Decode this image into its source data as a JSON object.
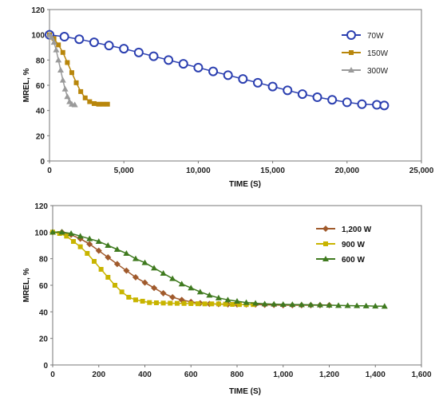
{
  "chart_data": [
    {
      "type": "line",
      "xlabel": "TIME (S)",
      "ylabel": "MREL, %",
      "xlim": [
        0,
        25000
      ],
      "ylim": [
        0,
        120
      ],
      "xticks": [
        "0",
        "5,000",
        "10,000",
        "15,000",
        "20,000",
        "25,000"
      ],
      "yticks": [
        "0",
        "20",
        "40",
        "60",
        "80",
        "100",
        "120"
      ],
      "legend_position": "top-right",
      "series": [
        {
          "name": "70W",
          "color": "#2b3fb0",
          "marker": "open-circle",
          "points": [
            [
              0,
              100
            ],
            [
              1000,
              98.5
            ],
            [
              2000,
              96.5
            ],
            [
              3000,
              94
            ],
            [
              4000,
              91.5
            ],
            [
              5000,
              89
            ],
            [
              6000,
              86
            ],
            [
              7000,
              83
            ],
            [
              8000,
              80
            ],
            [
              9000,
              77
            ],
            [
              10000,
              74
            ],
            [
              11000,
              71
            ],
            [
              12000,
              68
            ],
            [
              13000,
              65
            ],
            [
              14000,
              62
            ],
            [
              15000,
              59
            ],
            [
              16000,
              56
            ],
            [
              17000,
              53
            ],
            [
              18000,
              50.5
            ],
            [
              19000,
              48.5
            ],
            [
              20000,
              46.5
            ],
            [
              21000,
              45
            ],
            [
              22000,
              44.5
            ],
            [
              22500,
              44
            ]
          ]
        },
        {
          "name": "150W",
          "color": "#b8860b",
          "marker": "square",
          "points": [
            [
              0,
              100
            ],
            [
              300,
              97
            ],
            [
              600,
              92
            ],
            [
              900,
              86
            ],
            [
              1200,
              78
            ],
            [
              1500,
              70
            ],
            [
              1800,
              62
            ],
            [
              2100,
              55
            ],
            [
              2400,
              50
            ],
            [
              2700,
              47
            ],
            [
              3000,
              45.5
            ],
            [
              3300,
              45
            ],
            [
              3600,
              45
            ],
            [
              3900,
              45
            ]
          ]
        },
        {
          "name": "300W",
          "color": "#9a9a9a",
          "marker": "triangle",
          "points": [
            [
              0,
              100
            ],
            [
              150,
              98
            ],
            [
              300,
              94
            ],
            [
              450,
              88
            ],
            [
              600,
              80
            ],
            [
              750,
              72
            ],
            [
              900,
              64
            ],
            [
              1050,
              57
            ],
            [
              1200,
              51
            ],
            [
              1350,
              47
            ],
            [
              1500,
              45
            ],
            [
              1700,
              44.5
            ]
          ]
        }
      ]
    },
    {
      "type": "line",
      "xlabel": "TIME (S)",
      "ylabel": "MREL, %",
      "xlim": [
        0,
        1600
      ],
      "ylim": [
        0,
        120
      ],
      "xticks": [
        "0",
        "200",
        "400",
        "600",
        "800",
        "1,000",
        "1,200",
        "1,400",
        "1,600"
      ],
      "yticks": [
        "0",
        "20",
        "40",
        "60",
        "80",
        "100",
        "120"
      ],
      "legend_position": "top-right",
      "series": [
        {
          "name": "1,200 W",
          "color": "#a05a2c",
          "marker": "diamond",
          "points": [
            [
              0,
              100
            ],
            [
              40,
              100
            ],
            [
              80,
              98
            ],
            [
              120,
              95
            ],
            [
              160,
              91
            ],
            [
              200,
              86
            ],
            [
              240,
              81
            ],
            [
              280,
              76
            ],
            [
              320,
              71
            ],
            [
              360,
              66
            ],
            [
              400,
              62
            ],
            [
              440,
              58
            ],
            [
              480,
              54
            ],
            [
              520,
              51
            ],
            [
              560,
              49
            ],
            [
              600,
              47.5
            ],
            [
              640,
              46.5
            ],
            [
              680,
              46
            ],
            [
              720,
              45.8
            ],
            [
              760,
              45.6
            ],
            [
              800,
              45.5
            ],
            [
              840,
              45.5
            ],
            [
              880,
              45.5
            ],
            [
              920,
              45.3
            ],
            [
              960,
              45.2
            ],
            [
              1000,
              45
            ],
            [
              1040,
              45
            ],
            [
              1080,
              45
            ],
            [
              1120,
              45
            ],
            [
              1160,
              45
            ],
            [
              1200,
              45
            ]
          ]
        },
        {
          "name": "900 W",
          "color": "#c8b400",
          "marker": "square",
          "points": [
            [
              0,
              100
            ],
            [
              30,
              99
            ],
            [
              60,
              97
            ],
            [
              90,
              93
            ],
            [
              120,
              89
            ],
            [
              150,
              84
            ],
            [
              180,
              78
            ],
            [
              210,
              72
            ],
            [
              240,
              66
            ],
            [
              270,
              60
            ],
            [
              300,
              55
            ],
            [
              330,
              51
            ],
            [
              360,
              49
            ],
            [
              390,
              48
            ],
            [
              420,
              47
            ],
            [
              450,
              46.8
            ],
            [
              480,
              46.6
            ],
            [
              510,
              46.5
            ],
            [
              540,
              46.4
            ],
            [
              570,
              46.3
            ],
            [
              600,
              46.2
            ],
            [
              630,
              46.1
            ],
            [
              660,
              46
            ],
            [
              690,
              46
            ],
            [
              720,
              46
            ],
            [
              750,
              45.8
            ],
            [
              780,
              45.6
            ],
            [
              810,
              45.5
            ],
            [
              840,
              45.5
            ],
            [
              870,
              45.5
            ]
          ]
        },
        {
          "name": "600 W",
          "color": "#3f7a1f",
          "marker": "triangle",
          "points": [
            [
              0,
              100
            ],
            [
              40,
              100
            ],
            [
              80,
              99
            ],
            [
              120,
              97
            ],
            [
              160,
              95
            ],
            [
              200,
              93
            ],
            [
              240,
              90
            ],
            [
              280,
              87
            ],
            [
              320,
              84
            ],
            [
              360,
              80
            ],
            [
              400,
              77
            ],
            [
              440,
              73
            ],
            [
              480,
              69
            ],
            [
              520,
              65
            ],
            [
              560,
              61
            ],
            [
              600,
              58
            ],
            [
              640,
              55
            ],
            [
              680,
              52.5
            ],
            [
              720,
              50.5
            ],
            [
              760,
              49
            ],
            [
              800,
              48
            ],
            [
              840,
              47
            ],
            [
              880,
              46.5
            ],
            [
              920,
              46
            ],
            [
              960,
              45.8
            ],
            [
              1000,
              45.6
            ],
            [
              1040,
              45.5
            ],
            [
              1080,
              45.4
            ],
            [
              1120,
              45.3
            ],
            [
              1160,
              45.2
            ],
            [
              1200,
              45
            ],
            [
              1240,
              44.8
            ],
            [
              1280,
              44.7
            ],
            [
              1320,
              44.6
            ],
            [
              1360,
              44.5
            ],
            [
              1400,
              44.3
            ],
            [
              1440,
              44.2
            ]
          ]
        }
      ]
    }
  ]
}
